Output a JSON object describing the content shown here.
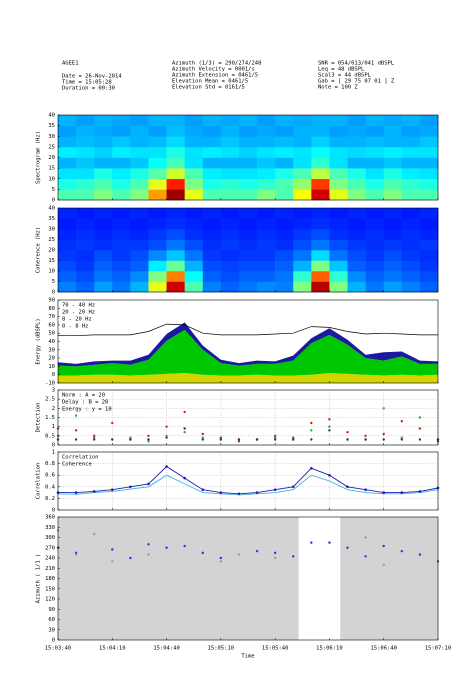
{
  "header": {
    "left": [
      "AGEE1",
      "Date = 26-Nov-2014",
      "Time = 15:05:28",
      "Duration = 00:30"
    ],
    "middle": [
      "Azimuth (1/3) = 290/274/248",
      "Azimuth Velocity = 0001/s",
      "Azimuth Extension = 0461/5",
      "Elevation Mean = 0461/5",
      "Elevation Std = 0161/5"
    ],
    "right": [
      "SNR = 054/013/041 dBSPL",
      "Leq = 48 dBSPL",
      "Scal3 = 44 dBSPL",
      "Gab = [ 29 75 07 01 ] Z",
      "Note = 100 Z"
    ]
  },
  "chart_data": [
    {
      "type": "heatmap",
      "ylabel": "Spectrogram (Hz)",
      "colormap": "jet",
      "xlim": [
        0,
        210
      ],
      "ylim": [
        0,
        40
      ],
      "yticks": [
        0,
        5,
        10,
        15,
        20,
        25,
        30,
        35,
        40
      ],
      "z": [
        [
          0.45,
          0.45,
          0.5,
          0.45,
          0.5,
          0.72,
          0.97,
          0.6,
          0.45,
          0.45,
          0.45,
          0.5,
          0.45,
          0.62,
          0.92,
          0.6,
          0.5,
          0.45,
          0.5,
          0.45,
          0.45
        ],
        [
          0.4,
          0.42,
          0.45,
          0.4,
          0.45,
          0.6,
          0.85,
          0.5,
          0.4,
          0.42,
          0.4,
          0.42,
          0.45,
          0.52,
          0.82,
          0.5,
          0.45,
          0.4,
          0.45,
          0.42,
          0.4
        ],
        [
          0.35,
          0.35,
          0.4,
          0.36,
          0.4,
          0.46,
          0.58,
          0.45,
          0.36,
          0.35,
          0.35,
          0.36,
          0.4,
          0.45,
          0.56,
          0.45,
          0.4,
          0.35,
          0.4,
          0.36,
          0.35
        ],
        [
          0.3,
          0.32,
          0.3,
          0.3,
          0.32,
          0.38,
          0.44,
          0.35,
          0.3,
          0.3,
          0.3,
          0.32,
          0.3,
          0.35,
          0.42,
          0.35,
          0.3,
          0.3,
          0.32,
          0.3,
          0.3
        ],
        [
          0.36,
          0.35,
          0.33,
          0.36,
          0.35,
          0.35,
          0.4,
          0.35,
          0.36,
          0.35,
          0.33,
          0.35,
          0.36,
          0.35,
          0.38,
          0.35,
          0.34,
          0.35,
          0.36,
          0.35,
          0.35
        ],
        [
          0.3,
          0.31,
          0.3,
          0.32,
          0.3,
          0.31,
          0.34,
          0.3,
          0.3,
          0.32,
          0.3,
          0.3,
          0.31,
          0.3,
          0.33,
          0.3,
          0.3,
          0.31,
          0.3,
          0.3,
          0.32
        ],
        [
          0.28,
          0.3,
          0.29,
          0.28,
          0.3,
          0.28,
          0.31,
          0.29,
          0.28,
          0.3,
          0.28,
          0.29,
          0.28,
          0.3,
          0.3,
          0.28,
          0.29,
          0.28,
          0.3,
          0.28,
          0.29
        ],
        [
          0.3,
          0.28,
          0.3,
          0.29,
          0.28,
          0.3,
          0.3,
          0.28,
          0.3,
          0.29,
          0.3,
          0.28,
          0.3,
          0.29,
          0.3,
          0.3,
          0.28,
          0.3,
          0.29,
          0.3,
          0.28
        ]
      ]
    },
    {
      "type": "heatmap",
      "ylabel": "Coherence (Hz)",
      "colormap": "jet",
      "xlim": [
        0,
        210
      ],
      "ylim": [
        0,
        40
      ],
      "yticks": [
        0,
        5,
        10,
        15,
        20,
        25,
        30,
        35,
        40
      ],
      "z": [
        [
          0.25,
          0.22,
          0.28,
          0.24,
          0.3,
          0.6,
          0.92,
          0.45,
          0.25,
          0.22,
          0.24,
          0.26,
          0.25,
          0.5,
          0.95,
          0.5,
          0.3,
          0.24,
          0.28,
          0.25,
          0.22
        ],
        [
          0.22,
          0.2,
          0.24,
          0.22,
          0.26,
          0.5,
          0.75,
          0.38,
          0.22,
          0.2,
          0.22,
          0.22,
          0.24,
          0.42,
          0.78,
          0.42,
          0.26,
          0.22,
          0.24,
          0.22,
          0.2
        ],
        [
          0.2,
          0.18,
          0.22,
          0.2,
          0.22,
          0.36,
          0.48,
          0.3,
          0.2,
          0.19,
          0.2,
          0.2,
          0.22,
          0.3,
          0.5,
          0.32,
          0.22,
          0.2,
          0.22,
          0.2,
          0.18
        ],
        [
          0.18,
          0.17,
          0.2,
          0.18,
          0.2,
          0.26,
          0.32,
          0.24,
          0.18,
          0.17,
          0.18,
          0.18,
          0.2,
          0.24,
          0.34,
          0.24,
          0.2,
          0.18,
          0.2,
          0.18,
          0.17
        ],
        [
          0.17,
          0.18,
          0.17,
          0.18,
          0.18,
          0.2,
          0.24,
          0.2,
          0.17,
          0.18,
          0.17,
          0.18,
          0.17,
          0.2,
          0.24,
          0.2,
          0.18,
          0.17,
          0.18,
          0.17,
          0.18
        ],
        [
          0.16,
          0.17,
          0.16,
          0.17,
          0.16,
          0.18,
          0.2,
          0.17,
          0.16,
          0.17,
          0.16,
          0.17,
          0.16,
          0.18,
          0.2,
          0.17,
          0.16,
          0.17,
          0.16,
          0.17,
          0.16
        ],
        [
          0.15,
          0.16,
          0.15,
          0.16,
          0.15,
          0.16,
          0.17,
          0.16,
          0.15,
          0.16,
          0.15,
          0.16,
          0.15,
          0.16,
          0.17,
          0.16,
          0.15,
          0.16,
          0.15,
          0.16,
          0.15
        ],
        [
          0.16,
          0.15,
          0.16,
          0.15,
          0.16,
          0.15,
          0.16,
          0.15,
          0.16,
          0.15,
          0.16,
          0.15,
          0.16,
          0.15,
          0.16,
          0.15,
          0.16,
          0.15,
          0.16,
          0.15,
          0.16
        ]
      ]
    },
    {
      "type": "area",
      "ylabel": "Energy (dBSPL)",
      "ylim": [
        -10,
        90
      ],
      "yticks": [
        -10,
        0,
        10,
        20,
        30,
        40,
        50,
        60,
        70,
        80,
        90
      ],
      "x": [
        0,
        10,
        20,
        30,
        40,
        50,
        60,
        70,
        80,
        90,
        100,
        110,
        120,
        130,
        140,
        150,
        160,
        170,
        180,
        190,
        200,
        210
      ],
      "series": [
        {
          "name": "70 - 40 Hz",
          "color": "#000000",
          "stacked": false,
          "values": [
            47,
            47,
            48,
            48,
            48,
            52,
            61,
            60,
            50,
            48,
            48,
            48,
            49,
            50,
            58,
            57,
            52,
            49,
            50,
            49,
            48,
            48
          ]
        },
        {
          "name": "20 - 20 Hz",
          "color": "#1a1aa0",
          "stacked": true,
          "values": [
            4,
            3,
            4,
            3,
            5,
            6,
            8,
            9,
            5,
            4,
            3,
            4,
            3,
            6,
            6,
            8,
            6,
            4,
            10,
            6,
            4,
            3
          ]
        },
        {
          "name": "8 - 20 Hz",
          "color": "#00c800",
          "stacked": true,
          "values": [
            12,
            11,
            12,
            14,
            13,
            18,
            40,
            52,
            30,
            15,
            12,
            13,
            14,
            18,
            38,
            46,
            35,
            20,
            18,
            22,
            14,
            13
          ]
        },
        {
          "name": "0 - 8 Hz",
          "color": "#d4d400",
          "stacked": true,
          "values": [
            9,
            9,
            10,
            10,
            9,
            10,
            11,
            12,
            10,
            9,
            9,
            10,
            9,
            9,
            10,
            12,
            11,
            10,
            9,
            10,
            9,
            10
          ]
        }
      ]
    },
    {
      "type": "scatter",
      "ylabel": "Detection",
      "grid": true,
      "ylim": [
        0,
        3
      ],
      "yticks": [
        0,
        0.5,
        1,
        1.5,
        2,
        2.5,
        3
      ],
      "x": [
        0,
        10,
        20,
        30,
        40,
        50,
        60,
        70,
        80,
        90,
        100,
        110,
        120,
        130,
        140,
        150,
        160,
        170,
        180,
        190,
        200,
        210
      ],
      "series": [
        {
          "name": "Norm : A = 20",
          "color": "#33aa33",
          "values": [
            0.5,
            1.6,
            0.4,
            0.3,
            0.4,
            0.2,
            0.5,
            0.7,
            0.4,
            0.3,
            0.3,
            0.3,
            0.4,
            0.3,
            0.8,
            1.0,
            0.3,
            0.3,
            2.0,
            0.4,
            1.5,
            0.3
          ]
        },
        {
          "name": "Delay : B = 20",
          "color": "#cc2222",
          "values": [
            0.9,
            0.8,
            0.5,
            1.2,
            0.3,
            0.5,
            1.0,
            1.8,
            0.6,
            0.4,
            0.2,
            0.3,
            0.5,
            0.4,
            1.2,
            1.4,
            0.7,
            0.5,
            0.6,
            1.3,
            0.9,
            0.2
          ]
        },
        {
          "name": "Energy : y = 10",
          "color": "#333366",
          "values": [
            0.3,
            0.3,
            0.3,
            0.3,
            0.3,
            0.3,
            0.4,
            0.9,
            0.3,
            0.3,
            0.3,
            0.3,
            0.3,
            0.3,
            0.3,
            0.8,
            0.3,
            0.3,
            0.3,
            0.3,
            0.3,
            0.3
          ]
        }
      ]
    },
    {
      "type": "line",
      "ylabel": "Correlation",
      "grid": true,
      "ylim": [
        0,
        1
      ],
      "yticks": [
        0,
        0.2,
        0.4,
        0.6,
        0.8,
        1
      ],
      "x": [
        0,
        10,
        20,
        30,
        40,
        50,
        60,
        70,
        80,
        90,
        100,
        110,
        120,
        130,
        140,
        150,
        160,
        170,
        180,
        190,
        200,
        210
      ],
      "series": [
        {
          "name": "Correlation",
          "color": "#2020b0",
          "markers": true,
          "values": [
            0.3,
            0.3,
            0.32,
            0.35,
            0.4,
            0.45,
            0.75,
            0.55,
            0.35,
            0.3,
            0.28,
            0.3,
            0.35,
            0.4,
            0.72,
            0.6,
            0.4,
            0.35,
            0.3,
            0.3,
            0.32,
            0.38
          ]
        },
        {
          "name": "Coherence",
          "color": "#40b0e0",
          "markers": false,
          "values": [
            0.28,
            0.27,
            0.3,
            0.32,
            0.36,
            0.4,
            0.6,
            0.45,
            0.3,
            0.28,
            0.26,
            0.28,
            0.3,
            0.35,
            0.6,
            0.5,
            0.35,
            0.3,
            0.28,
            0.28,
            0.3,
            0.35
          ]
        }
      ]
    },
    {
      "type": "scatter",
      "ylabel": "Azimuth ( 1/1 )",
      "xlabel": "Time",
      "background": "#d3d3d3",
      "highlight": [
        133,
        156
      ],
      "ylim": [
        0,
        360
      ],
      "yticks": [
        0,
        30,
        60,
        90,
        120,
        150,
        180,
        210,
        240,
        270,
        300,
        330,
        360
      ],
      "xlim": [
        0,
        210
      ],
      "xticks": [
        {
          "value": 0,
          "label": "15:03:40"
        },
        {
          "value": 30,
          "label": "15:04:10"
        },
        {
          "value": 60,
          "label": "15:04:40"
        },
        {
          "value": 90,
          "label": "15:05:10"
        },
        {
          "value": 120,
          "label": "15:05:40"
        },
        {
          "value": 150,
          "label": "15:06:10"
        },
        {
          "value": 180,
          "label": "15:06:40"
        },
        {
          "value": 210,
          "label": "15:07:10"
        }
      ],
      "x": [
        0,
        10,
        20,
        30,
        40,
        50,
        60,
        70,
        80,
        90,
        100,
        110,
        120,
        130,
        140,
        150,
        160,
        170,
        180,
        190,
        200,
        210
      ],
      "series": [
        {
          "color": "#3333cc",
          "values": [
            270,
            255,
            null,
            265,
            240,
            280,
            270,
            275,
            255,
            240,
            null,
            260,
            255,
            245,
            285,
            285,
            270,
            245,
            275,
            260,
            250,
            230
          ]
        },
        {
          "color": "#999999",
          "values": [
            320,
            250,
            310,
            230,
            null,
            250,
            null,
            null,
            null,
            230,
            250,
            null,
            240,
            null,
            null,
            null,
            null,
            300,
            220,
            null,
            null,
            null
          ]
        }
      ]
    }
  ]
}
